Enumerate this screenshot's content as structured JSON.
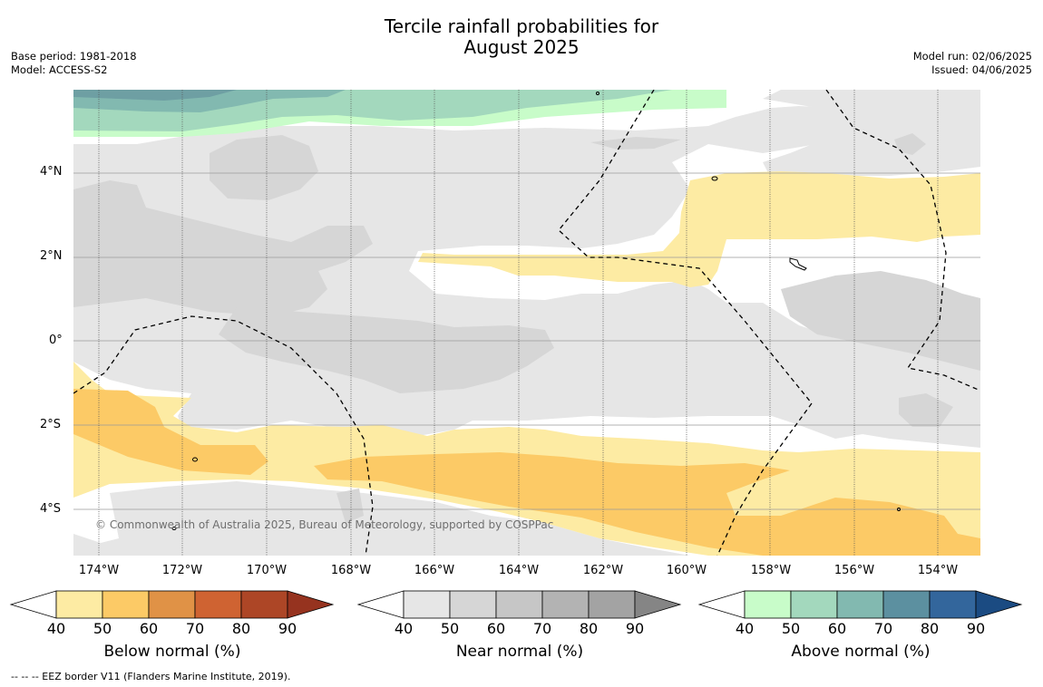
{
  "title_line1": "Tercile rainfall probabilities for",
  "title_line2": "August 2025",
  "meta_left": {
    "base_period": "Base period: 1981-2018",
    "model": "Model: ACCESS-S2"
  },
  "meta_right": {
    "model_run": "Model run: 02/06/2025",
    "issued": "Issued: 04/06/2025"
  },
  "lat_labels": [
    "4°N",
    "2°N",
    "0°",
    "2°S",
    "4°S"
  ],
  "lon_labels": [
    "174°W",
    "172°W",
    "170°W",
    "168°W",
    "166°W",
    "164°W",
    "162°W",
    "160°W",
    "158°W",
    "156°W",
    "154°W"
  ],
  "copyright": "© Commonwealth of Australia 2025, Bureau of Meteorology, supported by COSPPac",
  "colorbars": [
    {
      "label": "Below normal (%)",
      "colors": [
        "#fdeba3",
        "#fcca66",
        "#e09246",
        "#cf6332",
        "#ad4626"
      ],
      "tip_color": "#96331f",
      "ticks": [
        "40",
        "50",
        "60",
        "70",
        "80",
        "90"
      ]
    },
    {
      "label": "Near normal (%)",
      "colors": [
        "#e6e6e6",
        "#d6d6d6",
        "#c6c6c6",
        "#b3b3b3",
        "#a3a3a3"
      ],
      "tip_color": "#858585",
      "ticks": [
        "40",
        "50",
        "60",
        "70",
        "80",
        "90"
      ]
    },
    {
      "label": "Above normal (%)",
      "colors": [
        "#c8fcc9",
        "#a3d8bd",
        "#82b9b0",
        "#5c90a0",
        "#33669c"
      ],
      "tip_color": "#1b4b82",
      "ticks": [
        "40",
        "50",
        "60",
        "70",
        "80",
        "90"
      ]
    }
  ],
  "footer": "--  --  -- EEZ border V11 (Flanders Marine Institute, 2019).",
  "colors": {
    "map_white": "#ffffff",
    "near_40": "#e6e6e6",
    "near_50": "#d6d6d6",
    "below_40": "#fdeba3",
    "below_50": "#fcca66",
    "above_40": "#c8fcc9",
    "above_50": "#a3d8bd",
    "above_60": "#82b9b0",
    "above_70": "#6e9fa3"
  }
}
